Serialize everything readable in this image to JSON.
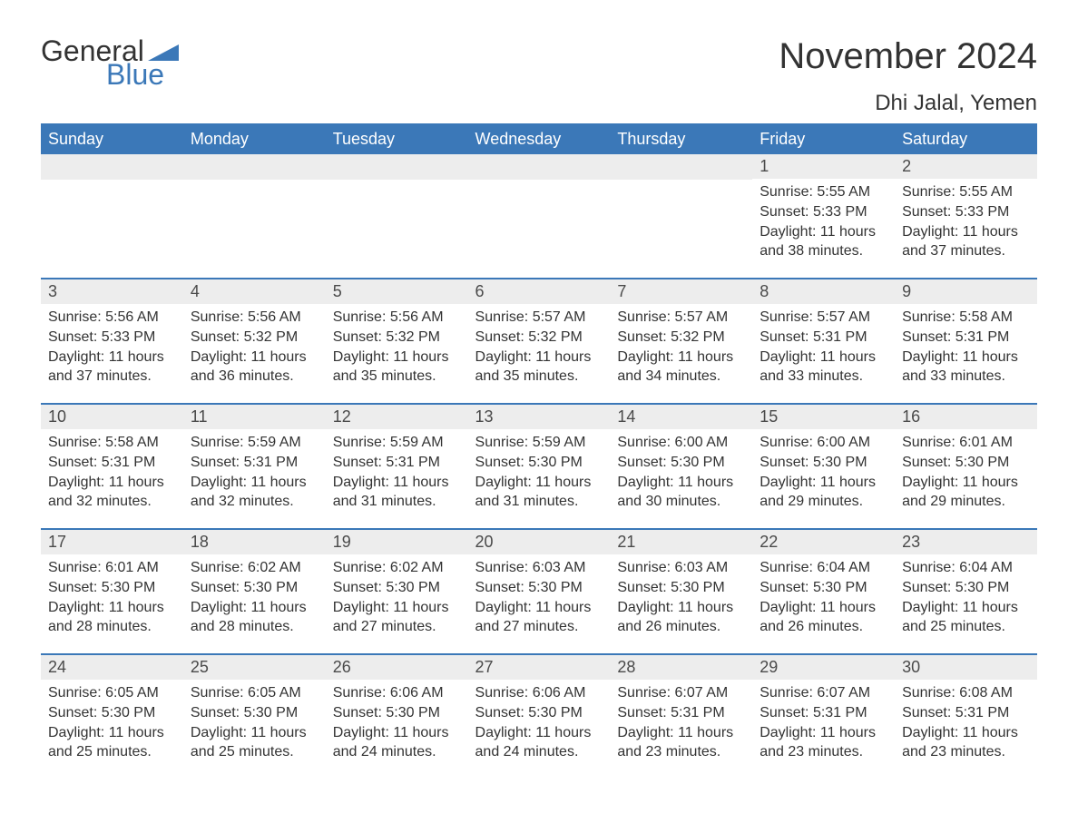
{
  "logo": {
    "part1": "General",
    "part2": "Blue",
    "accent_color": "#3b78b8"
  },
  "title": "November 2024",
  "location": "Dhi Jalal, Yemen",
  "colors": {
    "header_bg": "#3b78b8",
    "header_text": "#ffffff",
    "day_number_bg": "#ededed",
    "text": "#333333",
    "background": "#ffffff"
  },
  "fonts": {
    "title_pt": 40,
    "location_pt": 24,
    "header_pt": 18,
    "daynum_pt": 18,
    "body_pt": 16
  },
  "weekdays": [
    "Sunday",
    "Monday",
    "Tuesday",
    "Wednesday",
    "Thursday",
    "Friday",
    "Saturday"
  ],
  "weeks": [
    [
      null,
      null,
      null,
      null,
      null,
      {
        "n": 1,
        "sunrise": "5:55 AM",
        "sunset": "5:33 PM",
        "daylight": "11 hours and 38 minutes."
      },
      {
        "n": 2,
        "sunrise": "5:55 AM",
        "sunset": "5:33 PM",
        "daylight": "11 hours and 37 minutes."
      }
    ],
    [
      {
        "n": 3,
        "sunrise": "5:56 AM",
        "sunset": "5:33 PM",
        "daylight": "11 hours and 37 minutes."
      },
      {
        "n": 4,
        "sunrise": "5:56 AM",
        "sunset": "5:32 PM",
        "daylight": "11 hours and 36 minutes."
      },
      {
        "n": 5,
        "sunrise": "5:56 AM",
        "sunset": "5:32 PM",
        "daylight": "11 hours and 35 minutes."
      },
      {
        "n": 6,
        "sunrise": "5:57 AM",
        "sunset": "5:32 PM",
        "daylight": "11 hours and 35 minutes."
      },
      {
        "n": 7,
        "sunrise": "5:57 AM",
        "sunset": "5:32 PM",
        "daylight": "11 hours and 34 minutes."
      },
      {
        "n": 8,
        "sunrise": "5:57 AM",
        "sunset": "5:31 PM",
        "daylight": "11 hours and 33 minutes."
      },
      {
        "n": 9,
        "sunrise": "5:58 AM",
        "sunset": "5:31 PM",
        "daylight": "11 hours and 33 minutes."
      }
    ],
    [
      {
        "n": 10,
        "sunrise": "5:58 AM",
        "sunset": "5:31 PM",
        "daylight": "11 hours and 32 minutes."
      },
      {
        "n": 11,
        "sunrise": "5:59 AM",
        "sunset": "5:31 PM",
        "daylight": "11 hours and 32 minutes."
      },
      {
        "n": 12,
        "sunrise": "5:59 AM",
        "sunset": "5:31 PM",
        "daylight": "11 hours and 31 minutes."
      },
      {
        "n": 13,
        "sunrise": "5:59 AM",
        "sunset": "5:30 PM",
        "daylight": "11 hours and 31 minutes."
      },
      {
        "n": 14,
        "sunrise": "6:00 AM",
        "sunset": "5:30 PM",
        "daylight": "11 hours and 30 minutes."
      },
      {
        "n": 15,
        "sunrise": "6:00 AM",
        "sunset": "5:30 PM",
        "daylight": "11 hours and 29 minutes."
      },
      {
        "n": 16,
        "sunrise": "6:01 AM",
        "sunset": "5:30 PM",
        "daylight": "11 hours and 29 minutes."
      }
    ],
    [
      {
        "n": 17,
        "sunrise": "6:01 AM",
        "sunset": "5:30 PM",
        "daylight": "11 hours and 28 minutes."
      },
      {
        "n": 18,
        "sunrise": "6:02 AM",
        "sunset": "5:30 PM",
        "daylight": "11 hours and 28 minutes."
      },
      {
        "n": 19,
        "sunrise": "6:02 AM",
        "sunset": "5:30 PM",
        "daylight": "11 hours and 27 minutes."
      },
      {
        "n": 20,
        "sunrise": "6:03 AM",
        "sunset": "5:30 PM",
        "daylight": "11 hours and 27 minutes."
      },
      {
        "n": 21,
        "sunrise": "6:03 AM",
        "sunset": "5:30 PM",
        "daylight": "11 hours and 26 minutes."
      },
      {
        "n": 22,
        "sunrise": "6:04 AM",
        "sunset": "5:30 PM",
        "daylight": "11 hours and 26 minutes."
      },
      {
        "n": 23,
        "sunrise": "6:04 AM",
        "sunset": "5:30 PM",
        "daylight": "11 hours and 25 minutes."
      }
    ],
    [
      {
        "n": 24,
        "sunrise": "6:05 AM",
        "sunset": "5:30 PM",
        "daylight": "11 hours and 25 minutes."
      },
      {
        "n": 25,
        "sunrise": "6:05 AM",
        "sunset": "5:30 PM",
        "daylight": "11 hours and 25 minutes."
      },
      {
        "n": 26,
        "sunrise": "6:06 AM",
        "sunset": "5:30 PM",
        "daylight": "11 hours and 24 minutes."
      },
      {
        "n": 27,
        "sunrise": "6:06 AM",
        "sunset": "5:30 PM",
        "daylight": "11 hours and 24 minutes."
      },
      {
        "n": 28,
        "sunrise": "6:07 AM",
        "sunset": "5:31 PM",
        "daylight": "11 hours and 23 minutes."
      },
      {
        "n": 29,
        "sunrise": "6:07 AM",
        "sunset": "5:31 PM",
        "daylight": "11 hours and 23 minutes."
      },
      {
        "n": 30,
        "sunrise": "6:08 AM",
        "sunset": "5:31 PM",
        "daylight": "11 hours and 23 minutes."
      }
    ]
  ],
  "labels": {
    "sunrise": "Sunrise:",
    "sunset": "Sunset:",
    "daylight": "Daylight:"
  }
}
